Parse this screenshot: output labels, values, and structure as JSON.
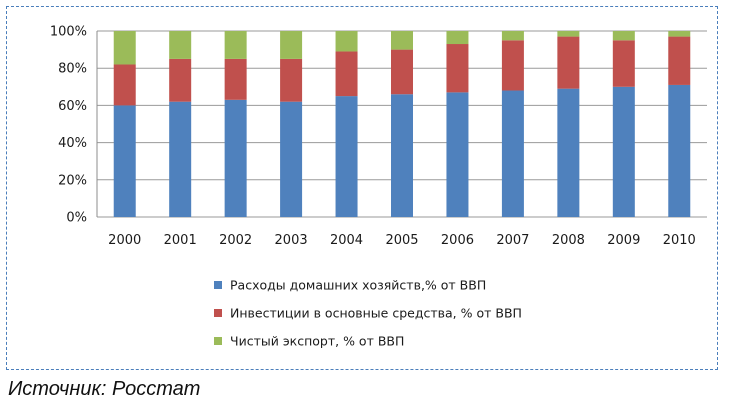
{
  "chart_data": {
    "type": "bar",
    "stacked": "percent",
    "categories": [
      "2000",
      "2001",
      "2002",
      "2003",
      "2004",
      "2005",
      "2006",
      "2007",
      "2008",
      "2009",
      "2010"
    ],
    "series": [
      {
        "name": "Расходы домашних хозяйств,% от ВВП",
        "color": "#4f81bd",
        "values": [
          60,
          62,
          63,
          62,
          65,
          66,
          67,
          68,
          69,
          70,
          71
        ]
      },
      {
        "name": "Инвестиции в основные средства, % от ВВП",
        "color": "#c0504d",
        "values": [
          22,
          23,
          22,
          23,
          24,
          24,
          26,
          27,
          28,
          25,
          26
        ]
      },
      {
        "name": "Чистый экспорт, % от ВВП",
        "color": "#9bbb59",
        "values": [
          18,
          15,
          15,
          15,
          11,
          10,
          7,
          5,
          3,
          5,
          3
        ]
      }
    ],
    "ylim": [
      0,
      100
    ],
    "yticks": [
      "0%",
      "20%",
      "40%",
      "60%",
      "80%",
      "100%"
    ],
    "grid": true,
    "legend_position": "bottom"
  },
  "source_caption": "Источник: Росстат"
}
